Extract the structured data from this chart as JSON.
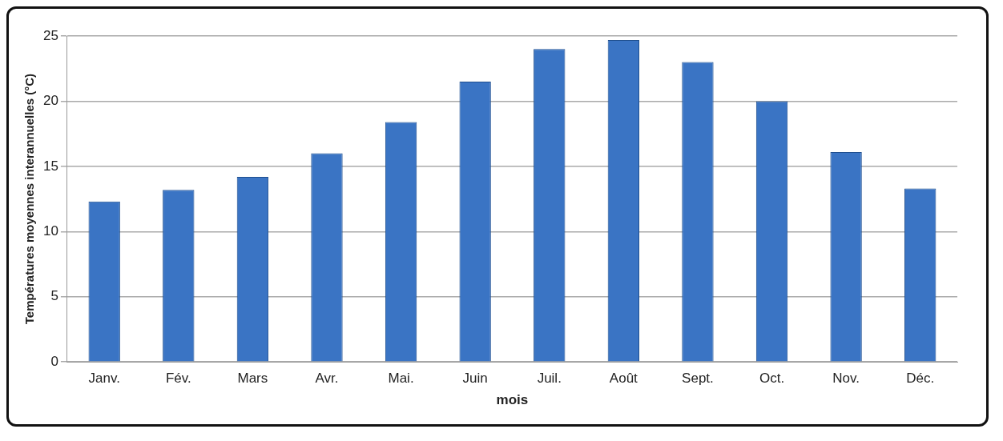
{
  "chart_data": {
    "type": "bar",
    "xlabel": "mois",
    "ylabel": "Températures moyennes interannuelles (°C)",
    "categories": [
      "Janv.",
      "Fév.",
      "Mars",
      "Avr.",
      "Mai.",
      "Juin",
      "Juil.",
      "Août",
      "Sept.",
      "Oct.",
      "Nov.",
      "Déc."
    ],
    "series": [
      {
        "color": "#3a74c4",
        "values": [
          12.3,
          13.2,
          14.2,
          16,
          18.4,
          21.5,
          24,
          24.7,
          23,
          20,
          16.1,
          13.3
        ]
      }
    ],
    "ylim": [
      0,
      25
    ],
    "yticks": [
      0,
      5,
      10,
      15,
      20,
      25
    ],
    "grid": "y",
    "legend": false
  }
}
